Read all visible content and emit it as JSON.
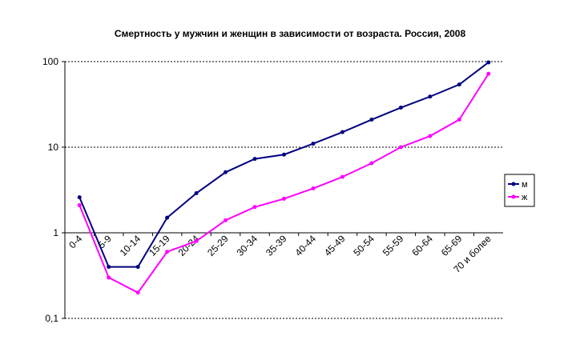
{
  "chart_data": {
    "type": "line",
    "title": "Смертность у мужчин и женщин в зависимости от возраста. Россия, 2008",
    "categories": [
      "0-4",
      "5-9",
      "10-14",
      "15-19",
      "20-24",
      "25-29",
      "30-34",
      "35-39",
      "40-44",
      "45-49",
      "50-54",
      "55-59",
      "60-64",
      "65-69",
      "70 и более"
    ],
    "series": [
      {
        "name": "м",
        "color": "#000080",
        "values": [
          2.6,
          0.4,
          0.4,
          1.5,
          2.9,
          5.1,
          7.3,
          8.2,
          11,
          15,
          21,
          29,
          39,
          54,
          98
        ]
      },
      {
        "name": "ж",
        "color": "#ff00ff",
        "values": [
          2.1,
          0.3,
          0.2,
          0.6,
          0.8,
          1.4,
          2.0,
          2.5,
          3.3,
          4.5,
          6.5,
          10,
          13.5,
          21,
          72
        ]
      }
    ],
    "log_scale": true,
    "ylim": [
      0.1,
      100
    ],
    "yticks": [
      {
        "value": 0.1,
        "label": "0,1"
      },
      1,
      10,
      100
    ],
    "grid": true,
    "legend": "right"
  }
}
